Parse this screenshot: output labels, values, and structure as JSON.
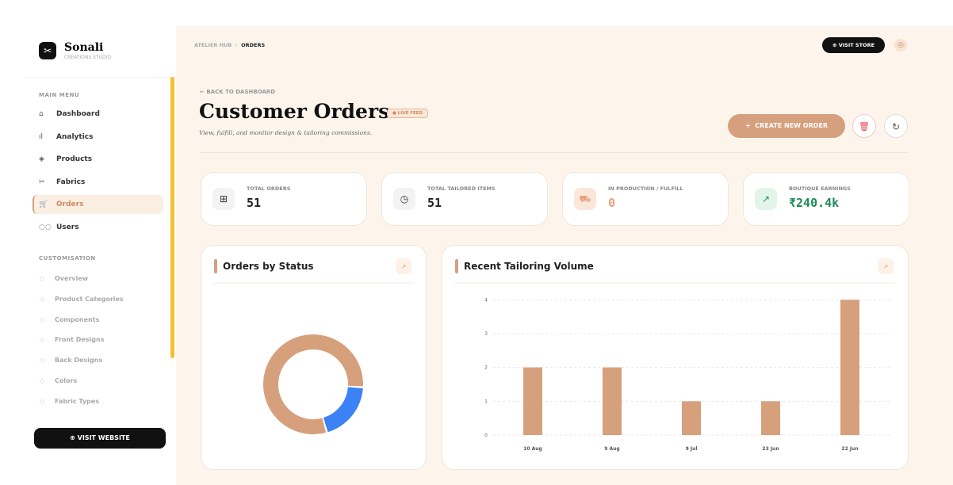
{
  "brand": {
    "name": "Sonali",
    "tagline": "CREATIONS STUDIO"
  },
  "sidebar": {
    "main_label": "MAIN MENU",
    "main_items": [
      "Dashboard",
      "Analytics",
      "Products",
      "Fabrics",
      "Orders",
      "Users"
    ],
    "custom_label": "CUSTOMISATION",
    "custom_items": [
      "Overview",
      "Product Categories",
      "Components",
      "Front Designs",
      "Back Designs",
      "Colors",
      "Fabric Types"
    ],
    "button": "VISIT WEBSITE"
  },
  "header": {
    "breadcrumb": [
      "ATELIER HUB",
      "ORDERS"
    ],
    "button": "VISIT STORE"
  },
  "page": {
    "back": "BACK TO DASHBOARD",
    "title": "Customer Orders",
    "badge": "LIVE FEED",
    "subtitle": "View, fulfill, and monitor design & tailoring commissions.",
    "create": "CREATE NEW ORDER"
  },
  "stats": [
    {
      "label": "TOTAL ORDERS",
      "value": 51
    },
    {
      "label": "TOTAL TAILORED ITEMS",
      "value": 51
    },
    {
      "label": "IN PRODUCTION / FULFILL",
      "value": 0
    },
    {
      "label": "BOUTIQUE EARNINGS",
      "value": "₹240.4k"
    }
  ],
  "chart_data": [
    {
      "type": "pie",
      "title": "Orders by Status",
      "values": [
        41,
        10
      ],
      "colors": [
        "#d6a07c",
        "#3b82f6"
      ],
      "donut": true
    },
    {
      "type": "bar",
      "title": "Recent Tailoring Volume",
      "categories": [
        "10 Aug",
        "9 Aug",
        "9 Jul",
        "23 Jun",
        "22 Jun"
      ],
      "values": [
        2,
        2,
        1,
        1,
        4
      ],
      "color": "#d6a07c",
      "ylim": [
        0,
        4.1
      ],
      "yticks": [
        0,
        1,
        2,
        3,
        4
      ],
      "grid": true
    }
  ]
}
